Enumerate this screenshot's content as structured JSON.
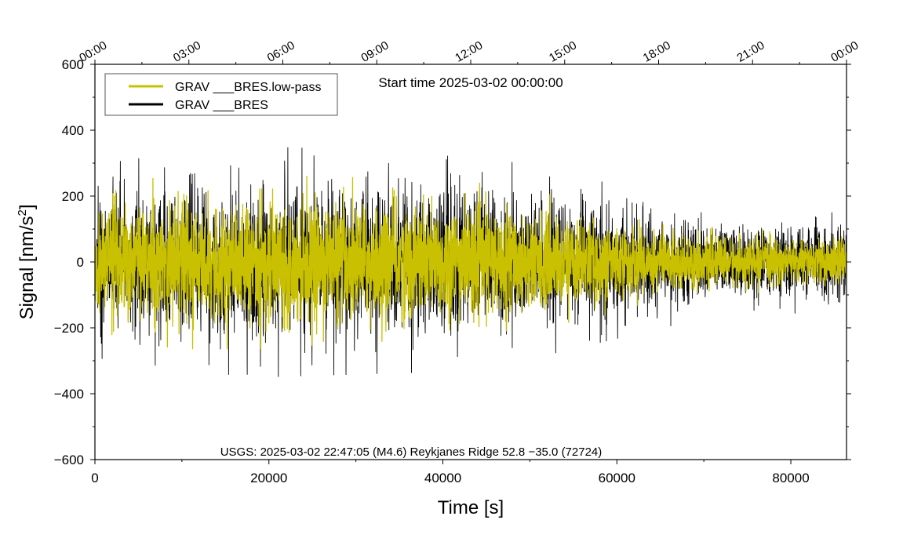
{
  "chart_data": {
    "type": "line",
    "title": "Start time 2025-03-02 00:00:00",
    "xlabel": "Time [s]",
    "ylabel_main": "Signal [nm/s",
    "ylabel_sup": "2",
    "ylabel_end": "]",
    "xlim": [
      0,
      86400
    ],
    "ylim": [
      -600,
      600
    ],
    "x_ticks": [
      0,
      20000,
      40000,
      60000,
      80000
    ],
    "x_tick_labels": [
      "0",
      "20000",
      "40000",
      "60000",
      "80000"
    ],
    "y_ticks": [
      -600,
      -400,
      -200,
      0,
      200,
      400,
      600
    ],
    "y_tick_labels": [
      "−600",
      "−400",
      "−200",
      "0",
      "200",
      "400",
      "600"
    ],
    "top_axis_ticks": [
      0,
      10800,
      21600,
      32400,
      43200,
      54000,
      64800,
      75600,
      86400
    ],
    "top_axis_labels": [
      "00:00",
      "03:00",
      "06:00",
      "09:00",
      "12:00",
      "15:00",
      "18:00",
      "21:00",
      "00:00"
    ],
    "annotation": "USGS: 2025-03-02 22:47:05 (M4.6) Reykjanes Ridge 52.8 −35.0 (72724)",
    "legend_position": "top-left",
    "series": [
      {
        "name": "GRAV ___BRES.low-pass",
        "color": "#c8c000",
        "amplitude_envelope_x": [
          0,
          10000,
          20000,
          30000,
          40000,
          50000,
          60000,
          70000,
          80000,
          86400
        ],
        "amplitude_envelope_y": [
          150,
          170,
          170,
          165,
          165,
          140,
          105,
          70,
          60,
          65
        ]
      },
      {
        "name": "GRAV ___BRES",
        "color": "#000000",
        "amplitude_envelope_x": [
          0,
          10000,
          20000,
          30000,
          40000,
          50000,
          60000,
          70000,
          80000,
          86400
        ],
        "amplitude_envelope_y": [
          190,
          215,
          225,
          220,
          215,
          190,
          150,
          110,
          100,
          105
        ]
      }
    ]
  }
}
